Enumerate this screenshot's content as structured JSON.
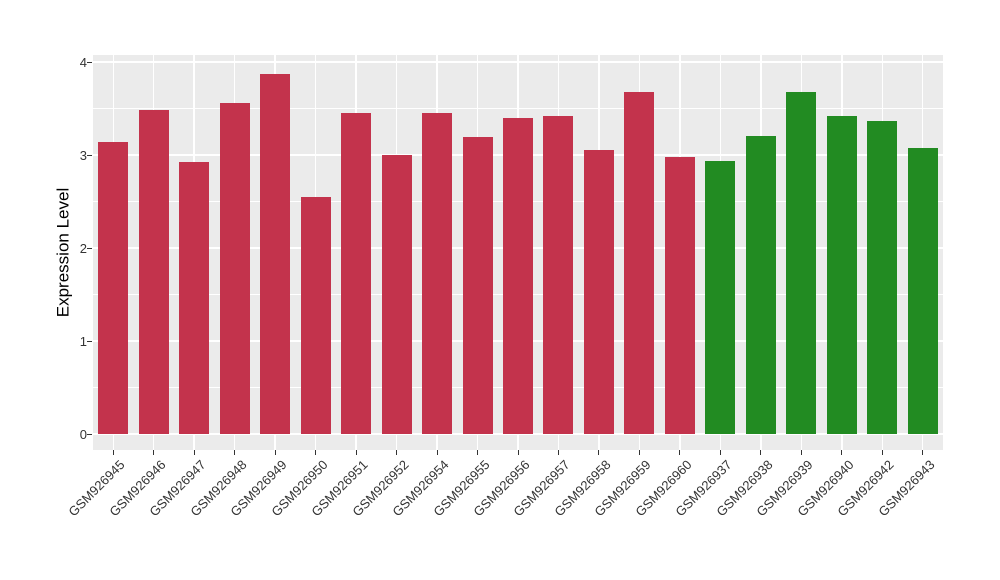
{
  "chart_data": {
    "type": "bar",
    "title": "",
    "xlabel": "",
    "ylabel": "Expression Level",
    "ylim": [
      0,
      4.08
    ],
    "yticks": [
      0,
      1,
      2,
      3,
      4
    ],
    "y_minor_ticks": [
      0.5,
      1.5,
      2.5,
      3.5
    ],
    "grid": "white major+minor horizontal lines and white vertical lines at category centers on gray panel",
    "legend_position": "none",
    "categories": [
      "GSM926945",
      "GSM926946",
      "GSM926947",
      "GSM926948",
      "GSM926949",
      "GSM926950",
      "GSM926951",
      "GSM926952",
      "GSM926954",
      "GSM926955",
      "GSM926956",
      "GSM926957",
      "GSM926958",
      "GSM926959",
      "GSM926960",
      "GSM926937",
      "GSM926938",
      "GSM926939",
      "GSM926940",
      "GSM926942",
      "GSM926943"
    ],
    "values": [
      3.14,
      3.48,
      2.92,
      3.56,
      3.87,
      2.55,
      3.45,
      3.0,
      3.45,
      3.19,
      3.4,
      3.42,
      3.05,
      3.68,
      2.98,
      2.94,
      3.2,
      3.68,
      3.42,
      3.37,
      3.07
    ],
    "bar_colors": [
      "#C3334C",
      "#C3334C",
      "#C3334C",
      "#C3334C",
      "#C3334C",
      "#C3334C",
      "#C3334C",
      "#C3334C",
      "#C3334C",
      "#C3334C",
      "#C3334C",
      "#C3334C",
      "#C3334C",
      "#C3334C",
      "#C3334C",
      "#228B22",
      "#228B22",
      "#228B22",
      "#228B22",
      "#228B22",
      "#228B22"
    ]
  },
  "style": {
    "panel_background": "#EBEBEB",
    "gridline_color": "#FFFFFF",
    "tick_color": "#333333",
    "red_group_color": "#C3334C",
    "green_group_color": "#228B22"
  }
}
